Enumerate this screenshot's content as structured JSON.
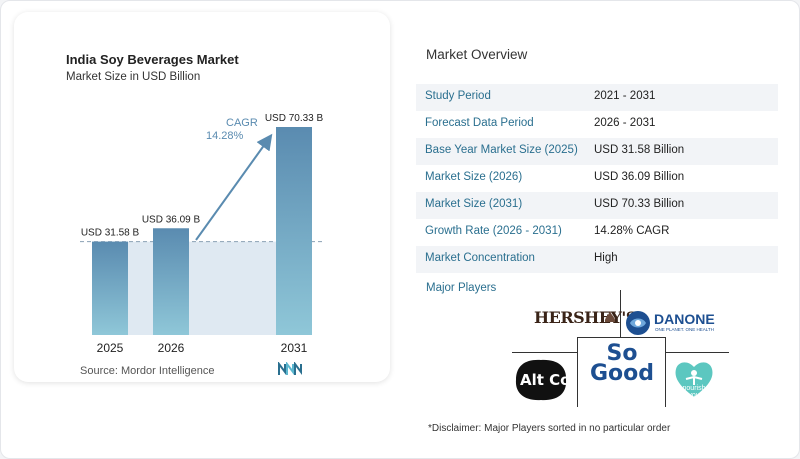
{
  "chart": {
    "title": "India Soy Beverages Market",
    "subtitle": "Market Size in USD Billion",
    "source": "Source:  Mordor Intelligence",
    "cagr_label": "CAGR",
    "cagr_value": "14.28%"
  },
  "chart_data": {
    "type": "bar",
    "categories": [
      "2025",
      "2026",
      "2031"
    ],
    "values": [
      31.58,
      36.09,
      70.33
    ],
    "data_labels": [
      "USD 31.58 B",
      "USD 36.09 B",
      "USD 70.33 B"
    ],
    "title": "India Soy Beverages Market",
    "subtitle": "Market Size in USD Billion",
    "xlabel": "",
    "ylabel": "",
    "ylim": [
      0,
      70.33
    ],
    "grid": false,
    "annotation": "CAGR 14.28%",
    "colors": {
      "bar_top": "#5a8bb0",
      "bar_bottom": "#8fc7d8",
      "shade": "#dfe9f2",
      "arrow": "#5a8bb0",
      "cagr_text": "#5a8bb0"
    }
  },
  "overview": {
    "title": "Market Overview",
    "rows": [
      {
        "label": "Study Period",
        "value": "2021 - 2031"
      },
      {
        "label": "Forecast Data Period",
        "value": "2026 - 2031"
      },
      {
        "label": "Base Year Market Size (2025)",
        "value": "USD 31.58 Billion"
      },
      {
        "label": "Market Size (2026)",
        "value": "USD 36.09 Billion"
      },
      {
        "label": "Market Size (2031)",
        "value": "USD 70.33 Billion"
      },
      {
        "label": "Growth Rate (2026 - 2031)",
        "value": "14.28% CAGR"
      },
      {
        "label": "Market Concentration",
        "value": "High"
      }
    ],
    "players_label": "Major Players",
    "players": [
      "HERSHEY'S",
      "DANONE",
      "ONE PLANET. ONE HEALTH",
      "Alt Co.",
      "So Good",
      "nourish you"
    ],
    "disclaimer": "*Disclaimer: Major Players sorted in no particular order"
  },
  "colors": {
    "accent": "#2a6f8f",
    "row_shade": "#f2f4f7",
    "danone_blue": "#1d4f91",
    "nourish_teal": "#5cc7c0"
  }
}
